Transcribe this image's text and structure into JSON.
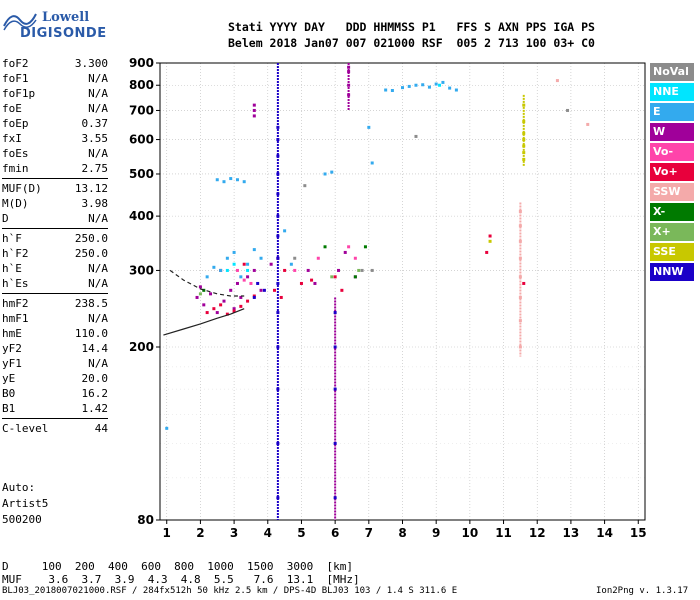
{
  "logo": {
    "line1": "Lowell",
    "line2": "DIGISONDE"
  },
  "header": {
    "labels": "Stati YYYY DAY   DDD HHMMSS P1   FFS S AXN PPS IGA PS",
    "values": "Belem 2018 Jan07 007 021000 RSF  005 2 713 100 03+ C0"
  },
  "params": {
    "group1": [
      {
        "key": "foF2",
        "value": "3.300"
      },
      {
        "key": "foF1",
        "value": "N/A"
      },
      {
        "key": "foF1p",
        "value": "N/A"
      },
      {
        "key": "foE",
        "value": "N/A"
      },
      {
        "key": "foEp",
        "value": "0.37"
      },
      {
        "key": "fxI",
        "value": "3.55"
      },
      {
        "key": "foEs",
        "value": "N/A"
      },
      {
        "key": "fmin",
        "value": "2.75"
      }
    ],
    "group2": [
      {
        "key": "MUF(D)",
        "value": "13.12"
      },
      {
        "key": "M(D)",
        "value": "3.98"
      },
      {
        "key": "D",
        "value": "N/A"
      }
    ],
    "group3": [
      {
        "key": "h`F",
        "value": "250.0"
      },
      {
        "key": "h`F2",
        "value": "250.0"
      },
      {
        "key": "h`E",
        "value": "N/A"
      },
      {
        "key": "h`Es",
        "value": "N/A"
      }
    ],
    "group4": [
      {
        "key": "hmF2",
        "value": "238.5"
      },
      {
        "key": "hmF1",
        "value": "N/A"
      },
      {
        "key": "hmE",
        "value": "110.0"
      },
      {
        "key": "yF2",
        "value": "14.4"
      },
      {
        "key": "yF1",
        "value": "N/A"
      },
      {
        "key": "yE",
        "value": "20.0"
      },
      {
        "key": "B0",
        "value": "16.2"
      },
      {
        "key": "B1",
        "value": "1.42"
      }
    ],
    "group5": [
      {
        "key": "C-level",
        "value": "44"
      }
    ]
  },
  "auto": {
    "line1": "Auto:",
    "line2": "Artist5",
    "line3": "500200"
  },
  "legend": [
    {
      "label": "NoVal",
      "color": "#8c8c8c"
    },
    {
      "label": "NNE",
      "color": "#00e5ff"
    },
    {
      "label": "E",
      "color": "#33aaee"
    },
    {
      "label": "W",
      "color": "#a0009a"
    },
    {
      "label": "Vo-",
      "color": "#ff44aa"
    },
    {
      "label": "Vo+",
      "color": "#e8003c"
    },
    {
      "label": "SSW",
      "color": "#f4aaaa"
    },
    {
      "label": "X-",
      "color": "#007a00"
    },
    {
      "label": "X+",
      "color": "#7ab85a"
    },
    {
      "label": "SSE",
      "color": "#c8c800"
    },
    {
      "label": "NNW",
      "color": "#1a00c8"
    }
  ],
  "dtable": {
    "row1": "D     100  200  400  600  800  1000  1500  3000  [km]",
    "row2": "MUF    3.6  3.7  3.9  4.3  4.8  5.5   7.6  13.1  [MHz]"
  },
  "footer": {
    "left": "BLJ03_2018007021000.RSF / 284fx512h 50 kHz 2.5 km / DPS-4D BLJ03 103 / 1.4 S 311.6 E",
    "right": "Ion2Png v. 1.3.17"
  },
  "chart_data": {
    "type": "scatter",
    "xlim": [
      0.8,
      15.2
    ],
    "ylim": [
      80,
      900
    ],
    "x_scale": "linear",
    "y_scale": "log",
    "x_ticks": [
      1,
      2,
      3,
      4,
      5,
      6,
      7,
      8,
      9,
      10,
      11,
      12,
      13,
      14,
      15
    ],
    "y_ticks": [
      80,
      200,
      300,
      400,
      500,
      600,
      700,
      800,
      900
    ],
    "grid": true,
    "series": [
      {
        "color": "#a0009a",
        "points": [
          [
            1.9,
            260
          ],
          [
            2.0,
            275
          ],
          [
            2.1,
            250
          ],
          [
            2.3,
            265
          ],
          [
            2.5,
            240
          ],
          [
            2.7,
            255
          ],
          [
            2.9,
            270
          ],
          [
            3.0,
            245
          ],
          [
            3.1,
            280
          ],
          [
            3.2,
            260
          ],
          [
            3.4,
            290
          ],
          [
            3.6,
            300
          ],
          [
            3.8,
            270
          ],
          [
            4.1,
            310
          ],
          [
            4.3,
            320
          ],
          [
            5.2,
            300
          ],
          [
            5.4,
            280
          ],
          [
            6.4,
            760
          ],
          [
            6.4,
            800
          ],
          [
            6.4,
            860
          ],
          [
            6.4,
            880
          ],
          [
            6.1,
            300
          ],
          [
            6.3,
            330
          ],
          [
            6.6,
            290
          ],
          [
            3.6,
            680
          ],
          [
            3.6,
            700
          ],
          [
            3.6,
            720
          ]
        ]
      },
      {
        "color": "#e8003c",
        "points": [
          [
            2.2,
            240
          ],
          [
            2.4,
            245
          ],
          [
            2.6,
            250
          ],
          [
            2.8,
            238
          ],
          [
            3.0,
            242
          ],
          [
            3.2,
            248
          ],
          [
            3.4,
            255
          ],
          [
            3.6,
            262
          ],
          [
            4.2,
            270
          ],
          [
            4.4,
            260
          ],
          [
            5.0,
            280
          ],
          [
            5.3,
            285
          ],
          [
            6.0,
            290
          ],
          [
            6.2,
            270
          ],
          [
            10.5,
            330
          ],
          [
            10.6,
            360
          ],
          [
            11.6,
            280
          ],
          [
            2.6,
            300
          ],
          [
            3.3,
            310
          ],
          [
            4.5,
            300
          ]
        ]
      },
      {
        "color": "#33aaee",
        "points": [
          [
            2.2,
            290
          ],
          [
            2.4,
            305
          ],
          [
            2.6,
            300
          ],
          [
            2.8,
            320
          ],
          [
            3.0,
            330
          ],
          [
            3.2,
            290
          ],
          [
            3.4,
            310
          ],
          [
            3.6,
            335
          ],
          [
            3.8,
            320
          ],
          [
            2.5,
            485
          ],
          [
            2.7,
            480
          ],
          [
            2.9,
            488
          ],
          [
            3.1,
            485
          ],
          [
            3.3,
            480
          ],
          [
            7.5,
            780
          ],
          [
            7.7,
            778
          ],
          [
            8.0,
            790
          ],
          [
            8.2,
            795
          ],
          [
            8.4,
            800
          ],
          [
            8.6,
            802
          ],
          [
            8.8,
            792
          ],
          [
            9.0,
            805
          ],
          [
            9.2,
            812
          ],
          [
            9.4,
            788
          ],
          [
            9.6,
            780
          ],
          [
            7.0,
            640
          ],
          [
            7.1,
            530
          ],
          [
            5.7,
            500
          ],
          [
            5.9,
            505
          ],
          [
            4.5,
            370
          ],
          [
            4.7,
            310
          ],
          [
            1.0,
            130
          ]
        ]
      },
      {
        "color": "#1a00c8",
        "points": [
          [
            4.3,
            90
          ],
          [
            4.3,
            120
          ],
          [
            4.3,
            160
          ],
          [
            4.3,
            200
          ],
          [
            4.3,
            240
          ],
          [
            4.3,
            280
          ],
          [
            4.3,
            320
          ],
          [
            4.3,
            360
          ],
          [
            4.3,
            400
          ],
          [
            4.3,
            450
          ],
          [
            4.3,
            500
          ],
          [
            4.3,
            550
          ],
          [
            4.3,
            600
          ],
          [
            4.3,
            640
          ],
          [
            6.0,
            90
          ],
          [
            6.0,
            120
          ],
          [
            6.0,
            160
          ],
          [
            6.0,
            200
          ],
          [
            6.0,
            240
          ],
          [
            3.6,
            260
          ],
          [
            3.7,
            280
          ],
          [
            3.9,
            270
          ]
        ]
      },
      {
        "color": "#ff44aa",
        "points": [
          [
            3.1,
            300
          ],
          [
            3.3,
            285
          ],
          [
            3.5,
            280
          ],
          [
            4.8,
            300
          ],
          [
            5.5,
            320
          ],
          [
            6.4,
            340
          ],
          [
            6.6,
            320
          ]
        ]
      },
      {
        "color": "#f4aaaa",
        "points": [
          [
            11.5,
            200
          ],
          [
            11.5,
            230
          ],
          [
            11.5,
            260
          ],
          [
            11.5,
            290
          ],
          [
            11.5,
            320
          ],
          [
            11.5,
            350
          ],
          [
            11.5,
            380
          ],
          [
            11.5,
            410
          ],
          [
            12.6,
            820
          ],
          [
            13.5,
            650
          ]
        ]
      },
      {
        "color": "#c8c800",
        "points": [
          [
            11.6,
            540
          ],
          [
            11.6,
            560
          ],
          [
            11.6,
            580
          ],
          [
            11.6,
            600
          ],
          [
            11.6,
            620
          ],
          [
            11.6,
            660
          ],
          [
            11.6,
            720
          ],
          [
            10.6,
            350
          ]
        ]
      },
      {
        "color": "#007a00",
        "points": [
          [
            2.1,
            270
          ],
          [
            5.7,
            340
          ],
          [
            6.6,
            290
          ],
          [
            6.9,
            340
          ]
        ]
      },
      {
        "color": "#7ab85a",
        "points": [
          [
            2.0,
            265
          ],
          [
            5.9,
            290
          ],
          [
            6.7,
            300
          ]
        ]
      },
      {
        "color": "#00e5ff",
        "points": [
          [
            2.8,
            300
          ],
          [
            3.0,
            310
          ],
          [
            3.4,
            300
          ],
          [
            9.1,
            800
          ]
        ]
      },
      {
        "color": "#8c8c8c",
        "points": [
          [
            4.8,
            320
          ],
          [
            5.1,
            470
          ],
          [
            6.8,
            300
          ],
          [
            7.1,
            300
          ],
          [
            8.4,
            610
          ],
          [
            12.9,
            700
          ]
        ]
      }
    ],
    "lines": [
      {
        "style": "solid",
        "points": [
          [
            0.9,
            213
          ],
          [
            1.5,
            220
          ],
          [
            2.0,
            226
          ],
          [
            2.5,
            233
          ],
          [
            2.9,
            238
          ],
          [
            3.3,
            245
          ]
        ]
      },
      {
        "style": "dashed",
        "points": [
          [
            1.1,
            300
          ],
          [
            1.5,
            285
          ],
          [
            2.0,
            272
          ],
          [
            2.5,
            265
          ],
          [
            2.9,
            262
          ],
          [
            3.3,
            262
          ]
        ]
      }
    ]
  }
}
